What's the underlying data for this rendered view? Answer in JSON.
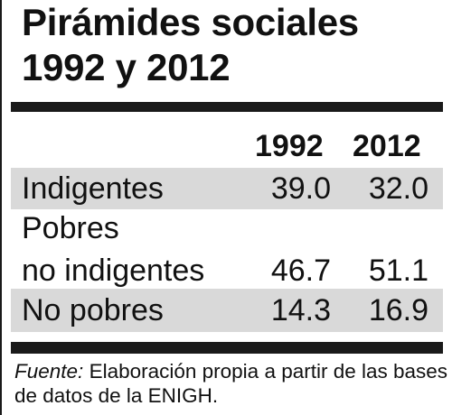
{
  "chart_data": {
    "type": "table",
    "title_line1": "Pirámides sociales",
    "title_line2": "1992 y 2012",
    "columns": [
      "1992",
      "2012"
    ],
    "rows": [
      {
        "label": "Indigentes",
        "values": [
          "39.0",
          "32.0"
        ]
      },
      {
        "label_line1": "Pobres",
        "label_line2": "no indigentes",
        "values": [
          "46.7",
          "51.1"
        ]
      },
      {
        "label": "No pobres",
        "values": [
          "14.3",
          "16.9"
        ]
      }
    ],
    "source_label": "Fuente:",
    "source_text": " Elaboración propia a partir de las bases de datos de la ENIGH."
  },
  "colors": {
    "text": "#111111",
    "rule": "#1a1a1a",
    "band": "#d9d9d9",
    "background": "#ffffff"
  }
}
